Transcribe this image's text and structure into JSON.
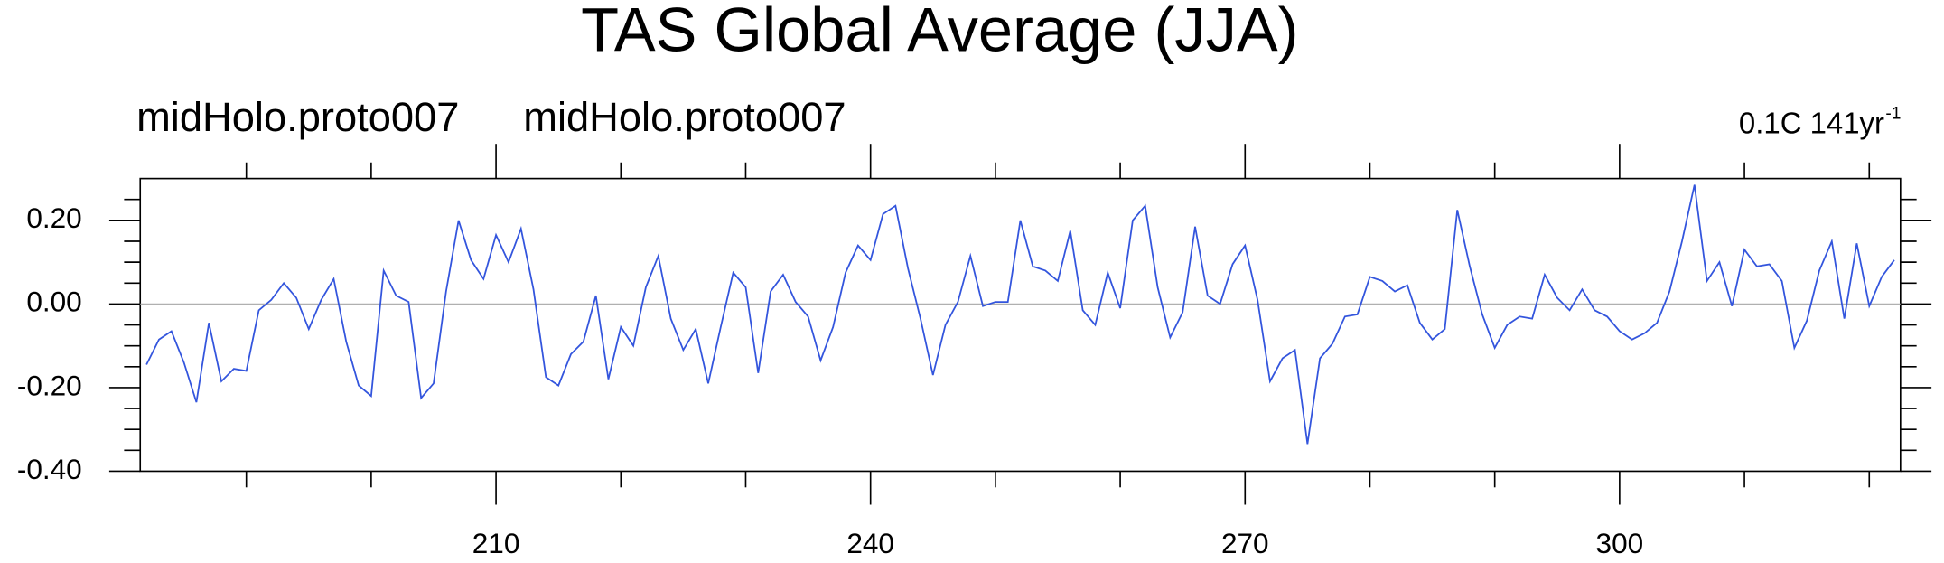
{
  "chart_data": {
    "type": "line",
    "title": "TAS Global Average (JJA)",
    "left_labels": [
      "midHolo.proto007",
      "midHolo.proto007"
    ],
    "right_label": "0.1C 141yr",
    "right_label_superscript": "-1",
    "x": [
      182,
      183,
      184,
      185,
      186,
      187,
      188,
      189,
      190,
      191,
      192,
      193,
      194,
      195,
      196,
      197,
      198,
      199,
      200,
      201,
      202,
      203,
      204,
      205,
      206,
      207,
      208,
      209,
      210,
      211,
      212,
      213,
      214,
      215,
      216,
      217,
      218,
      219,
      220,
      221,
      222,
      223,
      224,
      225,
      226,
      227,
      228,
      229,
      230,
      231,
      232,
      233,
      234,
      235,
      236,
      237,
      238,
      239,
      240,
      241,
      242,
      243,
      244,
      245,
      246,
      247,
      248,
      249,
      250,
      251,
      252,
      253,
      254,
      255,
      256,
      257,
      258,
      259,
      260,
      261,
      262,
      263,
      264,
      265,
      266,
      267,
      268,
      269,
      270,
      271,
      272,
      273,
      274,
      275,
      276,
      277,
      278,
      279,
      280,
      281,
      282,
      283,
      284,
      285,
      286,
      287,
      288,
      289,
      290,
      291,
      292,
      293,
      294,
      295,
      296,
      297,
      298,
      299,
      300,
      301,
      302,
      303,
      304,
      305,
      306,
      307,
      308,
      309,
      310,
      311,
      312,
      313,
      314,
      315,
      316,
      317,
      318,
      319,
      320,
      321,
      322
    ],
    "series": [
      {
        "color": "#3355dd",
        "values": [
          -0.145,
          -0.085,
          -0.065,
          -0.14,
          -0.235,
          -0.045,
          -0.185,
          -0.155,
          -0.16,
          -0.015,
          0.01,
          0.05,
          0.015,
          -0.06,
          0.01,
          0.06,
          -0.09,
          -0.195,
          -0.22,
          0.08,
          0.02,
          0.005,
          -0.225,
          -0.19,
          0.03,
          0.2,
          0.105,
          0.06,
          0.165,
          0.1,
          0.18,
          0.035,
          -0.175,
          -0.195,
          -0.12,
          -0.09,
          0.02,
          -0.18,
          -0.055,
          -0.1,
          0.04,
          0.115,
          -0.035,
          -0.11,
          -0.06,
          -0.19,
          -0.055,
          0.075,
          0.04,
          -0.165,
          0.03,
          0.07,
          0.005,
          -0.03,
          -0.135,
          -0.055,
          0.075,
          0.14,
          0.105,
          0.215,
          0.235,
          0.085,
          -0.035,
          -0.17,
          -0.05,
          0.005,
          0.115,
          -0.005,
          0.005,
          0.005,
          0.2,
          0.09,
          0.08,
          0.055,
          0.175,
          -0.015,
          -0.05,
          0.075,
          -0.01,
          0.2,
          0.235,
          0.04,
          -0.08,
          -0.02,
          0.185,
          0.02,
          0.0,
          0.095,
          0.14,
          0.01,
          -0.185,
          -0.13,
          -0.11,
          -0.335,
          -0.13,
          -0.095,
          -0.03,
          -0.025,
          0.065,
          0.055,
          0.03,
          0.045,
          -0.045,
          -0.085,
          -0.06,
          0.225,
          0.09,
          -0.025,
          -0.105,
          -0.05,
          -0.03,
          -0.035,
          0.07,
          0.015,
          -0.015,
          0.035,
          -0.015,
          -0.03,
          -0.065,
          -0.085,
          -0.07,
          -0.045,
          0.03,
          0.15,
          0.285,
          0.055,
          0.1,
          -0.005,
          0.13,
          0.09,
          0.095,
          0.055,
          -0.105,
          -0.04,
          0.08,
          0.15,
          -0.035,
          0.145,
          -0.005,
          0.065,
          0.105
        ]
      }
    ],
    "xlim": [
      181.5,
      322.5
    ],
    "ylim": [
      -0.4,
      0.3
    ],
    "xticks": [
      210,
      240,
      270,
      300
    ],
    "xminorticks": [
      190,
      200,
      220,
      230,
      250,
      260,
      280,
      290,
      310,
      320
    ],
    "yticks": [
      {
        "value": 0.2,
        "label": "0.20"
      },
      {
        "value": 0,
        "label": "0.00"
      },
      {
        "value": -0.2,
        "label": "-0.20"
      },
      {
        "value": -0.4,
        "label": "-0.40"
      }
    ],
    "yminorticks": [
      -0.35,
      -0.3,
      -0.25,
      -0.15,
      -0.1,
      -0.05,
      0.05,
      0.1,
      0.15,
      0.25
    ],
    "reference_line": 0,
    "reference_line_color": "#b0b0b0"
  }
}
